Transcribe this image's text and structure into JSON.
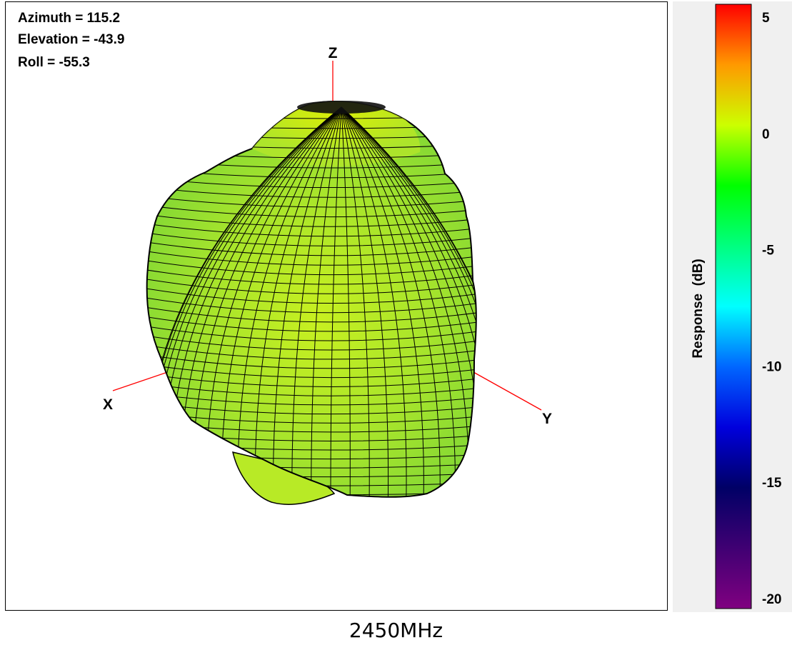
{
  "view_info": {
    "azimuth": "Azimuth = 115.2",
    "elevation": "Elevation = -43.9",
    "roll": "Roll = -55.3"
  },
  "chart_data": {
    "type": "3d-radiation-pattern-surface",
    "title": "2450MHz",
    "axes": {
      "x": "X",
      "y": "Y",
      "z": "Z"
    },
    "view": {
      "azimuth": 115.2,
      "elevation": -43.9,
      "roll": -55.3
    },
    "colorbar": {
      "label": "Response  (dB)",
      "range": [
        -20,
        5
      ],
      "ticks": [
        {
          "value": 5,
          "label": "5"
        },
        {
          "value": 0,
          "label": "0"
        },
        {
          "value": -5,
          "label": "-5"
        },
        {
          "value": -10,
          "label": "-10"
        },
        {
          "value": -15,
          "label": "-15"
        },
        {
          "value": -20,
          "label": "-20"
        }
      ],
      "colors": {
        "5": "#ff0000",
        "2.5": "#ff9900",
        "0": "#ccff00",
        "-2.5": "#00ff00",
        "-7.5": "#00ffff",
        "-10": "#0066ff",
        "-12.5": "#0000dd",
        "-15": "#000066",
        "-20": "#800080"
      }
    },
    "surface": {
      "approx_response_db": 0,
      "mesh_color": "#000000",
      "base_color": "#9ee82a"
    }
  }
}
